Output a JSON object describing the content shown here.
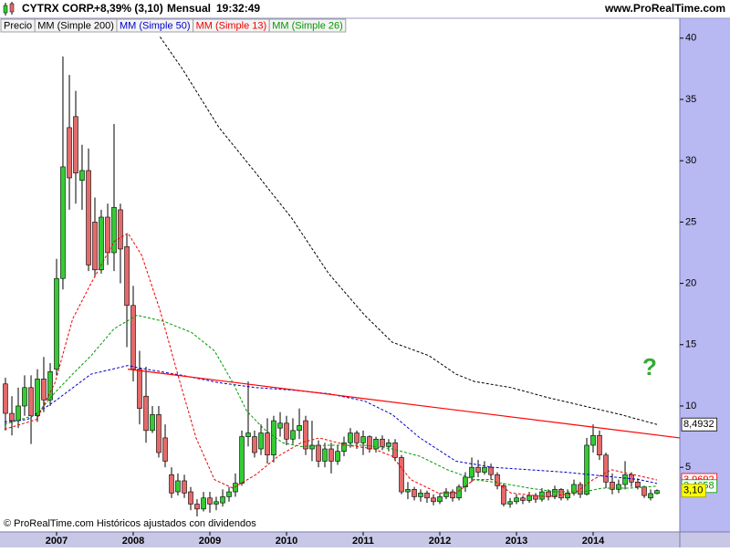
{
  "chart_data": {
    "type": "candlestick",
    "title": "CYTRX CORP.",
    "subtitle": "+8,39% (3,10)",
    "period": "Mensual",
    "time": "19:32:49",
    "source": "www.ProRealTime.com",
    "footnote": "© ProRealTime.com  Históricos ajustados con dividendos",
    "annotations": [
      {
        "text": "?",
        "color": "#33aa33"
      }
    ],
    "grid": false,
    "xlim": [
      2006.262,
      2015.131
    ],
    "xticks": [
      2007,
      2008,
      2009,
      2010,
      2011,
      2012,
      2013,
      2014
    ],
    "ylim": [
      -0.27,
      41.62
    ],
    "yticks": [
      5,
      10,
      15,
      20,
      25,
      30,
      35,
      40
    ],
    "trendlines": [
      {
        "color": "#ff0000",
        "x": [
          2007.93,
          2015.13
        ],
        "values": [
          13.0,
          7.4
        ]
      }
    ],
    "series": [
      {
        "name": "Precio",
        "type": "candlestick",
        "color": "#000000",
        "up_color": "#33cc33",
        "down_color": "#e46a6a",
        "label_fill": "#ffff00",
        "x": [
          2006.333,
          2006.417,
          2006.5,
          2006.583,
          2006.667,
          2006.75,
          2006.833,
          2006.917,
          2007,
          2007.083,
          2007.167,
          2007.25,
          2007.333,
          2007.417,
          2007.5,
          2007.583,
          2007.667,
          2007.75,
          2007.833,
          2007.917,
          2008,
          2008.083,
          2008.167,
          2008.25,
          2008.333,
          2008.417,
          2008.5,
          2008.583,
          2008.667,
          2008.75,
          2008.833,
          2008.917,
          2009,
          2009.083,
          2009.167,
          2009.25,
          2009.333,
          2009.417,
          2009.5,
          2009.583,
          2009.667,
          2009.75,
          2009.833,
          2009.917,
          2010,
          2010.083,
          2010.167,
          2010.25,
          2010.333,
          2010.417,
          2010.5,
          2010.583,
          2010.667,
          2010.75,
          2010.833,
          2010.917,
          2011,
          2011.083,
          2011.167,
          2011.25,
          2011.333,
          2011.417,
          2011.5,
          2011.583,
          2011.667,
          2011.75,
          2011.833,
          2011.917,
          2012,
          2012.083,
          2012.167,
          2012.25,
          2012.333,
          2012.417,
          2012.5,
          2012.583,
          2012.667,
          2012.75,
          2012.833,
          2012.917,
          2013,
          2013.083,
          2013.167,
          2013.25,
          2013.333,
          2013.417,
          2013.5,
          2013.583,
          2013.667,
          2013.75,
          2013.833,
          2013.917,
          2014,
          2014.083,
          2014.167,
          2014.25,
          2014.333,
          2014.417,
          2014.5,
          2014.583,
          2014.667,
          2014.75,
          2014.833
        ],
        "open": [
          11.8,
          9.4,
          8.8,
          10.0,
          11.5,
          9.2,
          12.2,
          10.5,
          13.0,
          20.4,
          32.7,
          33.6,
          28.4,
          29.2,
          25.0,
          21.1,
          25.4,
          22.5,
          26.0,
          23.0,
          18.2,
          13.0,
          10.8,
          8.0,
          9.3,
          7.4,
          4.4,
          3.0,
          3.9,
          3.0,
          2.0,
          1.6,
          2.5,
          2.0,
          2.1,
          2.6,
          3.0,
          3.7,
          7.5,
          7.5,
          6.5,
          7.8,
          6.0,
          8.2,
          8.6,
          7.3,
          8.0,
          8.8,
          6.5,
          6.8,
          5.5,
          6.5,
          5.5,
          6.3,
          7.0,
          7.8,
          7.0,
          7.5,
          6.5,
          7.3,
          6.7,
          7.0,
          5.8,
          3.0,
          3.2,
          2.6,
          2.9,
          2.5,
          2.2,
          2.6,
          3.0,
          2.5,
          3.4,
          4.2,
          5.0,
          4.6,
          5.0,
          4.4,
          3.5,
          2.0,
          2.2,
          2.5,
          2.3,
          2.7,
          2.4,
          3.0,
          2.6,
          3.2,
          2.5,
          2.9,
          3.6,
          2.8,
          6.8,
          7.6,
          6.0,
          3.8,
          3.2,
          3.6,
          4.4,
          3.8,
          3.4,
          2.5,
          2.86
        ],
        "high": [
          12.3,
          10.8,
          11.5,
          12.5,
          12.5,
          13.0,
          14.0,
          13.5,
          22.0,
          38.5,
          37.0,
          35.7,
          31.3,
          31.0,
          27.0,
          26.0,
          26.5,
          33.0,
          26.5,
          24.0,
          19.8,
          14.5,
          13.2,
          10.0,
          10.0,
          8.5,
          5.0,
          4.5,
          4.4,
          3.4,
          2.4,
          3.0,
          3.0,
          2.6,
          3.2,
          3.4,
          4.5,
          8.0,
          12.0,
          8.0,
          8.5,
          9.0,
          9.2,
          9.5,
          9.2,
          9.0,
          9.8,
          9.2,
          8.8,
          7.2,
          7.0,
          7.0,
          6.8,
          7.5,
          8.2,
          8.0,
          8.0,
          7.6,
          7.5,
          7.6,
          7.3,
          7.3,
          6.0,
          3.8,
          3.4,
          3.2,
          3.1,
          2.8,
          2.9,
          3.3,
          3.2,
          3.6,
          4.6,
          5.8,
          5.6,
          5.5,
          5.3,
          4.6,
          3.7,
          2.5,
          2.8,
          2.7,
          3.0,
          2.9,
          3.3,
          3.2,
          3.5,
          3.3,
          3.2,
          4.0,
          3.8,
          7.4,
          8.5,
          8.0,
          6.2,
          4.5,
          4.0,
          5.5,
          4.6,
          4.1,
          3.5,
          3.2,
          3.2
        ],
        "low": [
          8.0,
          7.6,
          8.2,
          9.2,
          6.9,
          8.7,
          9.5,
          10.0,
          12.5,
          19.5,
          26.0,
          26.5,
          26.0,
          21.0,
          20.5,
          20.8,
          21.5,
          21.0,
          20.0,
          14.8,
          12.0,
          8.5,
          7.0,
          7.8,
          5.8,
          5.0,
          2.5,
          2.7,
          2.5,
          1.5,
          1.0,
          1.4,
          1.3,
          1.5,
          1.8,
          2.2,
          2.6,
          3.5,
          6.7,
          5.8,
          6.0,
          5.3,
          5.4,
          7.5,
          6.8,
          6.9,
          7.3,
          6.0,
          5.5,
          5.0,
          5.0,
          4.5,
          5.2,
          5.9,
          6.6,
          6.5,
          6.0,
          6.2,
          6.2,
          6.4,
          6.3,
          5.5,
          2.8,
          2.4,
          2.3,
          2.2,
          2.1,
          1.9,
          2.0,
          2.4,
          2.2,
          2.3,
          3.0,
          3.8,
          4.2,
          4.4,
          4.0,
          3.2,
          1.8,
          1.7,
          2.0,
          2.0,
          2.1,
          2.1,
          2.2,
          2.3,
          2.4,
          2.3,
          2.3,
          2.7,
          2.5,
          2.7,
          6.2,
          5.6,
          3.3,
          2.8,
          2.9,
          3.2,
          3.4,
          3.2,
          2.5,
          2.3,
          2.8
        ],
        "close": [
          9.4,
          8.8,
          10.0,
          11.5,
          9.2,
          12.2,
          10.5,
          12.8,
          20.4,
          29.5,
          28.6,
          29.0,
          29.2,
          21.5,
          21.1,
          25.4,
          22.5,
          26.2,
          22.8,
          18.2,
          13.0,
          9.8,
          8.0,
          9.3,
          6.2,
          5.5,
          2.9,
          3.9,
          2.9,
          2.0,
          1.6,
          2.5,
          2.0,
          2.2,
          2.6,
          3.0,
          3.7,
          7.5,
          7.8,
          6.2,
          7.8,
          6.0,
          8.8,
          8.6,
          7.3,
          8.0,
          8.4,
          6.5,
          6.8,
          5.5,
          6.5,
          5.5,
          6.3,
          7.0,
          7.8,
          7.0,
          7.5,
          6.5,
          7.3,
          6.7,
          7.0,
          5.8,
          3.0,
          3.2,
          2.6,
          2.9,
          2.5,
          2.2,
          2.6,
          3.0,
          2.5,
          3.4,
          4.2,
          5.0,
          4.6,
          5.0,
          4.4,
          3.5,
          2.0,
          2.2,
          2.5,
          2.3,
          2.7,
          2.4,
          3.0,
          2.6,
          3.2,
          2.5,
          2.9,
          3.6,
          2.8,
          6.8,
          7.6,
          6.0,
          3.8,
          3.2,
          3.6,
          4.4,
          3.8,
          3.4,
          2.7,
          2.86,
          3.1
        ],
        "value_labels": [
          null,
          null,
          null,
          null,
          null,
          null,
          null,
          null,
          null,
          null,
          null,
          null,
          null,
          null,
          null,
          null,
          null,
          null,
          null,
          null,
          null,
          null,
          null,
          null,
          null,
          null,
          null,
          null,
          null,
          null,
          null,
          null,
          null,
          null,
          null,
          null,
          null,
          null,
          null,
          null,
          null,
          null,
          null,
          null,
          null,
          null,
          null,
          null,
          null,
          null,
          null,
          null,
          null,
          null,
          null,
          null,
          null,
          null,
          null,
          null,
          null,
          null,
          null,
          null,
          null,
          null,
          null,
          null,
          null,
          null,
          null,
          null,
          null,
          null,
          null,
          null,
          null,
          null,
          null,
          null,
          null,
          null,
          null,
          null,
          null,
          null,
          null,
          null,
          null,
          null,
          null,
          null,
          null,
          null,
          null,
          null,
          null,
          null,
          null,
          null,
          null,
          null,
          "3,10"
        ]
      },
      {
        "name": "MM (Simple 200)",
        "type": "line",
        "style": "dashed",
        "color": "#000000",
        "x": [
          2008.35,
          2008.64,
          2009.12,
          2009.6,
          2010.07,
          2010.55,
          2011.02,
          2011.38,
          2011.86,
          2012.21,
          2012.45,
          2012.93,
          2013.4,
          2013.88,
          2014.36,
          2014.833
        ],
        "values": [
          40.1,
          37.5,
          32.7,
          29.0,
          25.3,
          20.8,
          17.4,
          15.2,
          14.1,
          12.6,
          12.0,
          11.5,
          10.7,
          10.0,
          9.3,
          8.4932
        ],
        "value_labels": [
          null,
          null,
          null,
          null,
          null,
          null,
          null,
          null,
          null,
          null,
          null,
          null,
          null,
          null,
          null,
          "8,4932"
        ]
      },
      {
        "name": "MM (Simple 50)",
        "type": "line",
        "style": "dashed",
        "color": "#0000cc",
        "x": [
          2006.32,
          2006.62,
          2006.98,
          2007.45,
          2007.93,
          2008.17,
          2008.64,
          2009.12,
          2009.6,
          2010.07,
          2010.55,
          2011.02,
          2011.38,
          2011.74,
          2012.21,
          2012.69,
          2013.17,
          2013.64,
          2014.12,
          2014.6,
          2014.833
        ],
        "values": [
          8.7,
          8.9,
          10.4,
          12.6,
          13.3,
          13.0,
          12.5,
          11.9,
          11.5,
          11.3,
          11.0,
          10.4,
          9.3,
          7.4,
          5.5,
          5.0,
          4.8,
          4.6,
          4.3,
          4.0,
          3.6838
        ],
        "value_labels": [
          null,
          null,
          null,
          null,
          null,
          null,
          null,
          null,
          null,
          null,
          null,
          null,
          null,
          null,
          null,
          null,
          null,
          null,
          null,
          null,
          "3,6838"
        ]
      },
      {
        "name": "MM (Simple 13)",
        "type": "line",
        "style": "dashed",
        "color": "#ee0000",
        "x": [
          2006.32,
          2006.74,
          2006.98,
          2007.21,
          2007.45,
          2007.75,
          2007.93,
          2008.11,
          2008.35,
          2008.58,
          2008.82,
          2009.06,
          2009.3,
          2009.6,
          2009.89,
          2010.19,
          2010.43,
          2010.79,
          2011.14,
          2011.38,
          2011.62,
          2011.98,
          2012.21,
          2012.45,
          2012.69,
          2012.93,
          2013.4,
          2013.76,
          2014.0,
          2014.24,
          2014.6,
          2014.833
        ],
        "values": [
          8.1,
          8.9,
          11.9,
          17.1,
          20.0,
          23.4,
          24.1,
          22.3,
          17.8,
          12.6,
          7.4,
          4.0,
          3.3,
          4.4,
          5.9,
          7.0,
          7.4,
          6.8,
          6.5,
          5.9,
          4.0,
          2.9,
          2.9,
          4.0,
          4.0,
          2.9,
          2.6,
          2.9,
          4.0,
          4.8,
          4.3,
          3.9692
        ],
        "value_labels": [
          null,
          null,
          null,
          null,
          null,
          null,
          null,
          null,
          null,
          null,
          null,
          null,
          null,
          null,
          null,
          null,
          null,
          null,
          null,
          null,
          null,
          null,
          null,
          null,
          null,
          null,
          null,
          null,
          null,
          null,
          null,
          "3,9692"
        ]
      },
      {
        "name": "MM (Simple 26)",
        "type": "line",
        "style": "dashed",
        "color": "#009900",
        "x": [
          2006.32,
          2006.74,
          2006.98,
          2007.21,
          2007.45,
          2007.75,
          2008.05,
          2008.4,
          2008.76,
          2009.06,
          2009.3,
          2009.48,
          2009.71,
          2009.95,
          2010.19,
          2010.55,
          2011.02,
          2011.38,
          2011.74,
          2012.1,
          2012.45,
          2012.81,
          2013.17,
          2013.52,
          2013.88,
          2014.12,
          2014.48,
          2014.833
        ],
        "values": [
          8.5,
          9.3,
          11.1,
          12.6,
          14.1,
          16.3,
          17.4,
          16.9,
          16.0,
          14.5,
          11.9,
          9.6,
          8.1,
          7.0,
          6.7,
          6.8,
          6.8,
          6.5,
          5.9,
          4.8,
          4.0,
          3.7,
          3.3,
          3.0,
          3.0,
          3.3,
          3.3,
          3.4658
        ],
        "value_labels": [
          null,
          null,
          null,
          null,
          null,
          null,
          null,
          null,
          null,
          null,
          null,
          null,
          null,
          null,
          null,
          null,
          null,
          null,
          null,
          null,
          null,
          null,
          null,
          null,
          null,
          null,
          null,
          "3,4658"
        ]
      }
    ]
  }
}
